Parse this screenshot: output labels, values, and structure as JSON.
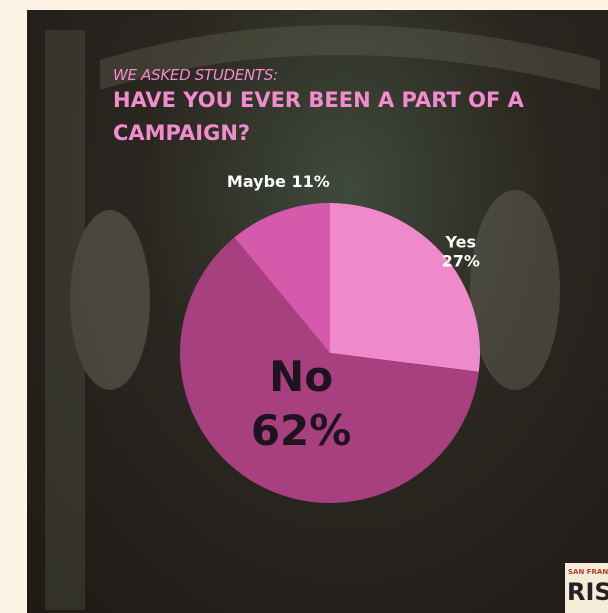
{
  "chart_data": {
    "type": "pie",
    "subtitle": "WE ASKED STUDENTS:",
    "title": "HAVE YOU EVER BEEN A PART OF A CAMPAIGN?",
    "categories": [
      "Yes",
      "No",
      "Maybe"
    ],
    "values": [
      27,
      62,
      11
    ],
    "value_labels": [
      "27%",
      "62%",
      "11%"
    ],
    "colors": [
      "#ee8ac9",
      "#a8407f",
      "#d65aab"
    ]
  },
  "logo": {
    "top": "SAN FRANCISCO",
    "bottom": "RISING"
  }
}
